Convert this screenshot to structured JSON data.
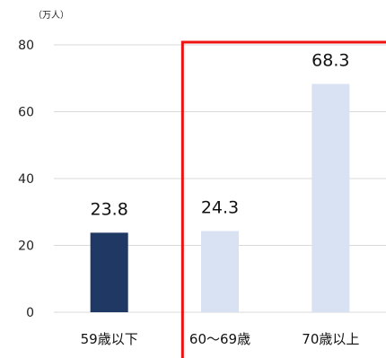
{
  "chart_data": {
    "type": "bar",
    "unit_label": "（万人）",
    "categories": [
      "59歳以下",
      "60〜69歳",
      "70歳以上"
    ],
    "values": [
      23.8,
      24.3,
      68.3
    ],
    "value_labels": [
      "23.8",
      "24.3",
      "68.3"
    ],
    "bar_colors": [
      "#1f3864",
      "#d9e2f3",
      "#d9e2f3"
    ],
    "highlight_color": "#ee1111",
    "gridline_color": "#d9d9d9",
    "ylim": [
      0,
      80
    ],
    "yticks": [
      0,
      20,
      40,
      60,
      80
    ],
    "grid": true,
    "highlight": {
      "from_category_index": 1
    }
  }
}
